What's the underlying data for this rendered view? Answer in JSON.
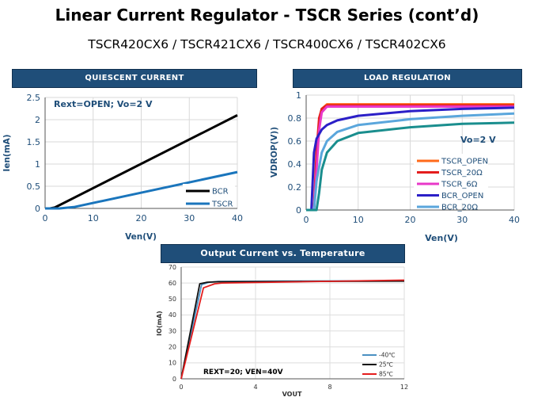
{
  "page": {
    "title": "Linear Current Regulator - TSCR Series (cont’d)",
    "subtitle": "TSCR420CX6  /  TSCR421CX6  /  TSCR400CX6  /  TSCR402CX6"
  },
  "colors": {
    "header_bg": "#1f4e79",
    "axis_text": "#1f4e79"
  },
  "chart_data": [
    {
      "type": "line",
      "header": "QUIESCENT  CURRENT",
      "annotation": "Rext=OPEN; Vo=2 V",
      "xlabel": "Ven(V)",
      "ylabel": "Ien(mA)",
      "xlim": [
        0,
        40
      ],
      "ylim": [
        0,
        2.5
      ],
      "xticks": [
        "0",
        "10",
        "20",
        "30",
        "40"
      ],
      "yticks": [
        "0",
        "0.5",
        "1",
        "1.5",
        "2",
        "2.5"
      ],
      "grid": true,
      "legend": "bottom-right",
      "series": [
        {
          "name": "BCR",
          "color": "#000000",
          "x": [
            0,
            1,
            2,
            40
          ],
          "y": [
            0,
            0,
            0.02,
            2.1
          ]
        },
        {
          "name": "TSCR",
          "color": "#1a75bc",
          "x": [
            0,
            3,
            6,
            40
          ],
          "y": [
            0,
            0,
            0.03,
            0.82
          ]
        }
      ]
    },
    {
      "type": "line",
      "header": "LOAD REGULATION",
      "annotation": "Vo=2 V",
      "xlabel": "Ven(V)",
      "ylabel": "VDROP(V))",
      "xlim": [
        0,
        40
      ],
      "ylim": [
        0,
        1
      ],
      "xticks": [
        "0",
        "10",
        "20",
        "30",
        "40"
      ],
      "yticks": [
        "0",
        "0.2",
        "0.4",
        "0.6",
        "0.8",
        "1"
      ],
      "grid": true,
      "legend": "bottom-right",
      "series": [
        {
          "name": "TSCR_OPEN",
          "color": "#ff6a1a",
          "x": [
            0,
            1.5,
            2,
            2.5,
            3,
            4,
            10,
            40
          ],
          "y": [
            0,
            0,
            0.4,
            0.75,
            0.88,
            0.92,
            0.92,
            0.92
          ]
        },
        {
          "name": "TSCR_20Ω",
          "color": "#e41d1d",
          "x": [
            0,
            1.5,
            2,
            2.5,
            3,
            4,
            10,
            40
          ],
          "y": [
            0,
            0,
            0.5,
            0.8,
            0.88,
            0.91,
            0.91,
            0.91
          ]
        },
        {
          "name": "TSCR_6Ω",
          "color": "#e838c8",
          "x": [
            0,
            1.5,
            2,
            2.5,
            3,
            4,
            10,
            40
          ],
          "y": [
            0,
            0,
            0.35,
            0.7,
            0.85,
            0.9,
            0.9,
            0.9
          ]
        },
        {
          "name": "BCR_OPEN",
          "color": "#2b1fc7",
          "x": [
            0,
            1,
            1.5,
            2,
            3,
            4,
            6,
            10,
            20,
            30,
            40
          ],
          "y": [
            0,
            0,
            0.5,
            0.62,
            0.7,
            0.74,
            0.78,
            0.82,
            0.86,
            0.88,
            0.89
          ]
        },
        {
          "name": "BCR_20Ω",
          "color": "#5aa6dc",
          "x": [
            0,
            1.5,
            2,
            3,
            4,
            6,
            10,
            20,
            30,
            40
          ],
          "y": [
            0,
            0,
            0.25,
            0.5,
            0.6,
            0.68,
            0.74,
            0.79,
            0.82,
            0.84
          ]
        },
        {
          "name": "",
          "color": "#1a8e8e",
          "x": [
            0,
            2,
            2.5,
            3,
            4,
            6,
            10,
            20,
            30,
            40
          ],
          "y": [
            0,
            0,
            0.15,
            0.35,
            0.5,
            0.6,
            0.67,
            0.72,
            0.75,
            0.76
          ]
        }
      ]
    },
    {
      "type": "line",
      "header": "Output Current  vs. Temperature",
      "annotation": "REXT=20; VEN=40V",
      "xlabel": "VOUT",
      "ylabel": "IO(mA)",
      "xlim": [
        0,
        12
      ],
      "ylim": [
        0,
        70
      ],
      "xticks": [
        "0",
        "4",
        "8",
        "12"
      ],
      "yticks": [
        "0",
        "10",
        "20",
        "30",
        "40",
        "50",
        "60",
        "70"
      ],
      "grid": true,
      "legend": "bottom-right",
      "series": [
        {
          "name": "-40℃",
          "color": "#4a90c2",
          "x": [
            0,
            1.1,
            1.5,
            2,
            12
          ],
          "y": [
            0,
            59,
            60.5,
            61,
            61.5
          ]
        },
        {
          "name": "25℃",
          "color": "#111111",
          "x": [
            0,
            1.0,
            1.4,
            2,
            12
          ],
          "y": [
            0,
            59.5,
            60.5,
            60.8,
            61.2
          ]
        },
        {
          "name": "85℃",
          "color": "#e41d1d",
          "x": [
            0,
            1.2,
            1.8,
            2.2,
            12
          ],
          "y": [
            0,
            57,
            59.5,
            60,
            61.8
          ]
        }
      ]
    }
  ]
}
